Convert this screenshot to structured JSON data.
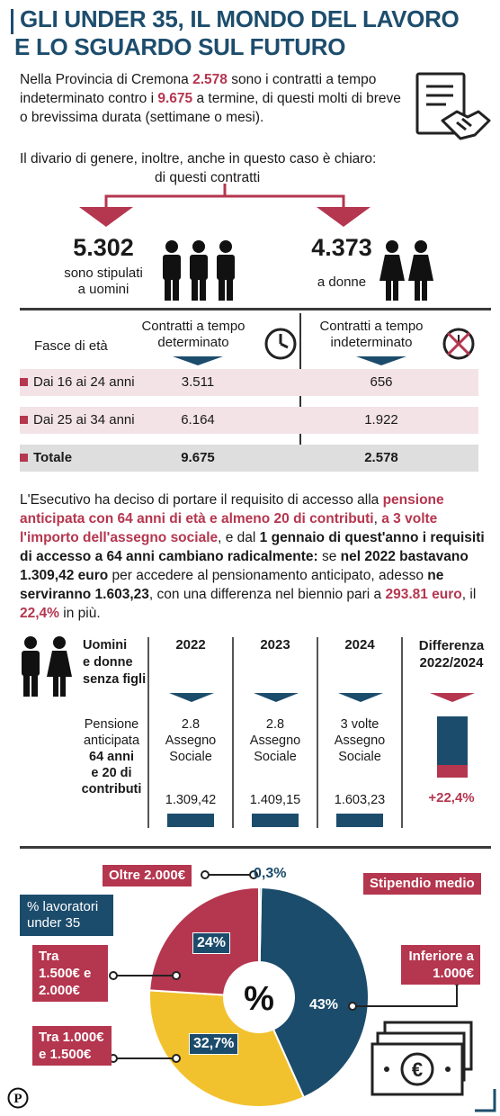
{
  "title_line1": "GLI UNDER 35, IL MONDO DEL LAVORO",
  "title_line2": "E LO SGUARDO SUL FUTURO",
  "intro": {
    "t1": "Nella Provincia di Cremona ",
    "n1": "2.578",
    "t2": " sono i contratti a tempo indeterminato contro i ",
    "n2": "9.675",
    "t3": " a termine, di questi molti di breve o brevissima durata (settimane o mesi)."
  },
  "divario_line1": "Il divario di genere, inoltre, anche in questo caso è chiaro:",
  "divario_line2": "di questi contratti",
  "men": {
    "value": "5.302",
    "label1": "sono stipulati",
    "label2": "a uomini"
  },
  "women": {
    "value": "4.373",
    "label": "a donne"
  },
  "colors": {
    "red": "#b5364f",
    "navy": "#1c4c6c",
    "yellow": "#f2c12e",
    "gray": "#dedede",
    "pink": "#f3e3e6"
  },
  "table": {
    "col_age": "Fasce di età",
    "col_det1": "Contratti a tempo",
    "col_det2": "determinato",
    "col_ind1": "Contratti a tempo",
    "col_ind2": "indeterminato",
    "rows": [
      {
        "label": "Dai 16 ai 24 anni",
        "det": "3.511",
        "ind": "656"
      },
      {
        "label": "Dai 25 ai 34 anni",
        "det": "6.164",
        "ind": "1.922"
      },
      {
        "label": "Totale",
        "det": "9.675",
        "ind": "2.578"
      }
    ]
  },
  "para": {
    "p1": "L'Esecutivo ha deciso di portare il requisito di accesso alla ",
    "p2": "pensione anticipata con 64 anni di età e almeno 20 di contributi",
    "p3": ", ",
    "p4": "a 3 volte l'importo dell'assegno sociale",
    "p5": ", e dal ",
    "p6": "1 gennaio di quest'anno i requisiti di accesso a 64 anni cambiano radicalmente:",
    "p7": " se ",
    "p8": "nel 2022 bastavano 1.309,42 euro",
    "p9": " per accedere al pensionamento anticipato, adesso ",
    "p10": "ne serviranno 1.603,23",
    "p11": ", con una differenza nel biennio pari a ",
    "p12": "293.81 euro",
    "p13": ", il ",
    "p14": "22,4%",
    "p15": " in più."
  },
  "pension": {
    "head1": "Uomini",
    "head2": "e donne",
    "head3": "senza figli",
    "left1": "Pensione",
    "left2": "anticipata",
    "left3": "64 anni",
    "left4": "e 20 di",
    "left5": "contributi",
    "diff_label1": "Differenza",
    "diff_label2": "2022/2024",
    "diff_value": "+22,4%",
    "years": [
      {
        "year": "2022",
        "l1": "2.8",
        "l2": "Assegno",
        "l3": "Sociale",
        "amount": "1.309,42"
      },
      {
        "year": "2023",
        "l1": "2.8",
        "l2": "Assegno",
        "l3": "Sociale",
        "amount": "1.409,15"
      },
      {
        "year": "2024",
        "l1": "3 volte",
        "l2": "Assegno",
        "l3": "Sociale",
        "amount": "1.603,23"
      }
    ]
  },
  "chart_data": {
    "type": "pie",
    "title": "Stipendio medio",
    "legend": "% lavoratori under 35",
    "center_label": "%",
    "slices": [
      {
        "name": "Inferiore a 1.000€",
        "value": 43,
        "label": "43%",
        "color": "#1c4c6c"
      },
      {
        "name": "Tra 1.000€ e 1.500€",
        "value": 32.7,
        "label": "32,7%",
        "color": "#f2c12e"
      },
      {
        "name": "Tra 1.500€ e 2.000€",
        "value": 24,
        "label": "24%",
        "color": "#b5364f"
      },
      {
        "name": "Oltre 2.000€",
        "value": 0.3,
        "label": "0,3%",
        "color": "#2e7d5b"
      }
    ]
  },
  "logo_letter": "P"
}
